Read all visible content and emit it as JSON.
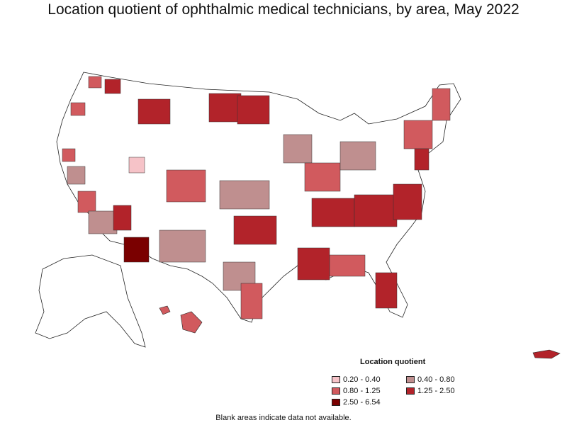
{
  "title": "Location quotient of ophthalmic medical technicians, by area, May 2022",
  "legend": {
    "title": "Location quotient",
    "items": [
      {
        "label": "0.20 - 0.40",
        "color": "#f6c3c8"
      },
      {
        "label": "0.40 - 0.80",
        "color": "#bf8f8f"
      },
      {
        "label": "0.80 - 1.25",
        "color": "#d15a5e"
      },
      {
        "label": "1.25 - 2.50",
        "color": "#b2232a"
      },
      {
        "label": "2.50 - 6.54",
        "color": "#7a0000"
      }
    ]
  },
  "note": "Blank areas indicate data not available."
}
